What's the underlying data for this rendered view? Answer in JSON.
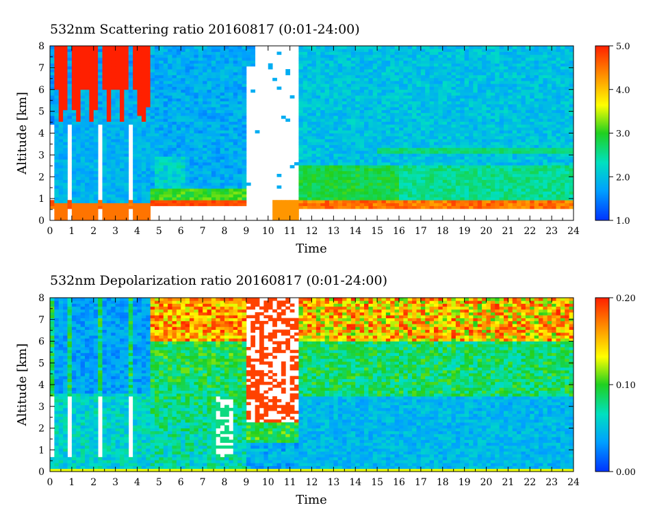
{
  "chart_data": [
    {
      "type": "heatmap",
      "title": "532nm Scattering ratio  20160817 (0:01-24:00)",
      "xlabel": "Time",
      "ylabel": "Altitude [km]",
      "xlim": [
        0,
        24
      ],
      "ylim": [
        0,
        8
      ],
      "x_ticks": [
        0,
        1,
        2,
        3,
        4,
        5,
        6,
        7,
        8,
        9,
        10,
        11,
        12,
        13,
        14,
        15,
        16,
        17,
        18,
        19,
        20,
        21,
        22,
        23,
        24
      ],
      "y_ticks": [
        0,
        1,
        2,
        3,
        4,
        5,
        6,
        7,
        8
      ],
      "colorbar": {
        "range": [
          1.0,
          5.0
        ],
        "tick_values": [
          1.0,
          2.0,
          3.0,
          4.0,
          5.0
        ],
        "tick_labels": [
          "1.0",
          "2.0",
          "3.0",
          "4.0",
          "5.0"
        ],
        "colors": [
          "#0033ff",
          "#00a0ff",
          "#00e0c0",
          "#20d020",
          "#ffff00",
          "#ff9000",
          "#ff2000"
        ]
      },
      "features": [
        {
          "feature": "tall thin cloud columns with strong scattering at the top",
          "time_ranges": [
            [
              0.3,
              0.8
            ],
            [
              1.0,
              1.5
            ],
            [
              1.7,
              2.2
            ],
            [
              2.5,
              2.9
            ],
            [
              3.1,
              3.5
            ],
            [
              3.9,
              4.6
            ]
          ],
          "altitude_km": [
            4.5,
            8.0
          ]
        },
        {
          "feature": "no data / attenuated region",
          "time_range": [
            9.0,
            11.5
          ],
          "altitude_km": [
            0.8,
            8.0
          ]
        },
        {
          "feature": "boundary layer top",
          "time_range": [
            11.5,
            24.0
          ],
          "altitude_km": [
            0.5,
            1.0
          ],
          "value": 4.5
        },
        {
          "feature": "aerosol layer",
          "time_range": [
            11.5,
            24.0
          ],
          "altitude_km": [
            1.0,
            2.5
          ],
          "value": 2.8
        },
        {
          "feature": "thin layer",
          "time_range": [
            15.0,
            24.0
          ],
          "altitude_km": [
            3.0,
            3.3
          ],
          "value": 2.6
        }
      ]
    },
    {
      "type": "heatmap",
      "title": "532nm Depolarization ratio  20160817 (0:01-24:00)",
      "xlabel": "Time",
      "ylabel": "Altitude [km]",
      "xlim": [
        0,
        24
      ],
      "ylim": [
        0,
        8
      ],
      "x_ticks": [
        0,
        1,
        2,
        3,
        4,
        5,
        6,
        7,
        8,
        9,
        10,
        11,
        12,
        13,
        14,
        15,
        16,
        17,
        18,
        19,
        20,
        21,
        22,
        23,
        24
      ],
      "y_ticks": [
        0,
        1,
        2,
        3,
        4,
        5,
        6,
        7,
        8
      ],
      "colorbar": {
        "range": [
          0.0,
          0.2
        ],
        "tick_values": [
          0.0,
          0.1,
          0.2
        ],
        "tick_labels": [
          "0.00",
          "0.10",
          "0.20"
        ],
        "colors": [
          "#0033ff",
          "#00a0ff",
          "#00e0c0",
          "#20d020",
          "#ffff00",
          "#ff9000",
          "#ff2000"
        ]
      },
      "features": [
        {
          "feature": "low depolarization cloud columns",
          "time_ranges": [
            [
              0.3,
              0.8
            ],
            [
              1.0,
              1.5
            ],
            [
              1.7,
              2.2
            ],
            [
              2.5,
              2.9
            ],
            [
              3.1,
              3.5
            ],
            [
              3.9,
              4.6
            ]
          ],
          "altitude_km": [
            0.5,
            8.0
          ],
          "value": 0.03
        },
        {
          "feature": "high depolarization noisy region",
          "time_range": [
            9.0,
            11.5
          ],
          "altitude_km": [
            2.0,
            8.0
          ],
          "value": 0.2
        },
        {
          "feature": "high depolarization upper noise",
          "time_range": [
            4.6,
            24.0
          ],
          "altitude_km": [
            6.0,
            8.0
          ],
          "value": 0.17
        },
        {
          "feature": "low depolarization boundary layer",
          "time_range": [
            11.5,
            24.0
          ],
          "altitude_km": [
            0.3,
            3.0
          ],
          "value": 0.04
        },
        {
          "feature": "surface line",
          "time_range": [
            0.0,
            24.0
          ],
          "altitude_km": [
            0.0,
            0.2
          ],
          "value": 0.13
        }
      ]
    }
  ]
}
